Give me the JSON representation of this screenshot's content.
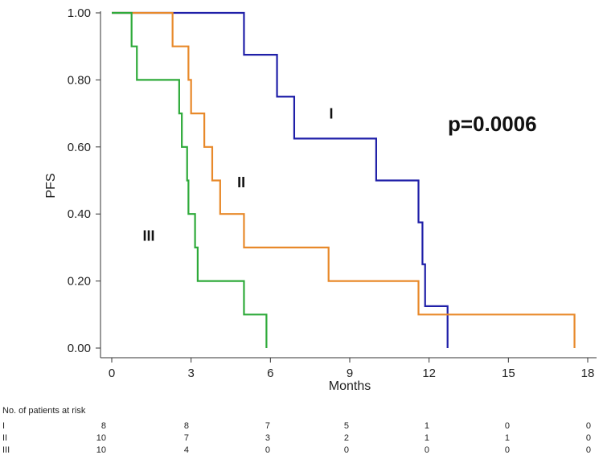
{
  "chart_data": {
    "type": "line",
    "subtype": "kaplan-meier-step",
    "title": "",
    "xlabel": "Months",
    "ylabel": "PFS",
    "xlim": [
      0,
      18
    ],
    "ylim": [
      0,
      1
    ],
    "xticks": [
      0,
      3,
      6,
      9,
      12,
      15,
      18
    ],
    "xtick_labels": [
      "0",
      "3",
      "6",
      "9",
      "12",
      "15",
      "18"
    ],
    "yticks": [
      0,
      0.2,
      0.4,
      0.6,
      0.8,
      1.0
    ],
    "ytick_labels": [
      "0.00",
      "0.20",
      "0.40",
      "0.60",
      "0.80",
      "1.00"
    ],
    "grid": false,
    "annotation": "p=0.0006",
    "series": [
      {
        "name": "I",
        "color": "#1F1FA8",
        "label_at": [
          8.3,
          0.685
        ],
        "steps": [
          [
            0,
            1.0
          ],
          [
            5.0,
            0.875
          ],
          [
            6.25,
            0.75
          ],
          [
            6.9,
            0.625
          ],
          [
            10.0,
            0.5
          ],
          [
            11.6,
            0.375
          ],
          [
            11.75,
            0.25
          ],
          [
            11.85,
            0.125
          ],
          [
            12.7,
            0.0
          ]
        ],
        "end_x": 12.7
      },
      {
        "name": "II",
        "color": "#E8892A",
        "label_at": [
          4.9,
          0.48
        ],
        "steps": [
          [
            0,
            1.0
          ],
          [
            2.3,
            0.9
          ],
          [
            2.9,
            0.8
          ],
          [
            3.0,
            0.7
          ],
          [
            3.5,
            0.6
          ],
          [
            3.8,
            0.5
          ],
          [
            4.1,
            0.4
          ],
          [
            5.0,
            0.3
          ],
          [
            8.2,
            0.2
          ],
          [
            11.6,
            0.1
          ],
          [
            17.5,
            0.0
          ]
        ],
        "end_x": 17.5
      },
      {
        "name": "III",
        "color": "#2EAA3A",
        "label_at": [
          1.4,
          0.32
        ],
        "steps": [
          [
            0,
            1.0
          ],
          [
            0.75,
            0.9
          ],
          [
            0.95,
            0.8
          ],
          [
            2.55,
            0.7
          ],
          [
            2.65,
            0.6
          ],
          [
            2.85,
            0.5
          ],
          [
            2.9,
            0.4
          ],
          [
            3.15,
            0.3
          ],
          [
            3.25,
            0.2
          ],
          [
            5.0,
            0.1
          ],
          [
            5.85,
            0.0
          ]
        ],
        "end_x": 5.85
      }
    ],
    "risk_table": {
      "title": "No. of patients at risk",
      "timepoints": [
        0,
        3,
        6,
        9,
        12,
        15,
        18
      ],
      "rows": [
        {
          "label": "I",
          "values": [
            "8",
            "8",
            "7",
            "5",
            "1",
            "0",
            "0"
          ]
        },
        {
          "label": "II",
          "values": [
            "10",
            "7",
            "3",
            "2",
            "1",
            "1",
            "0"
          ]
        },
        {
          "label": "III",
          "values": [
            "10",
            "4",
            "0",
            "0",
            "0",
            "0",
            "0"
          ]
        }
      ]
    }
  }
}
